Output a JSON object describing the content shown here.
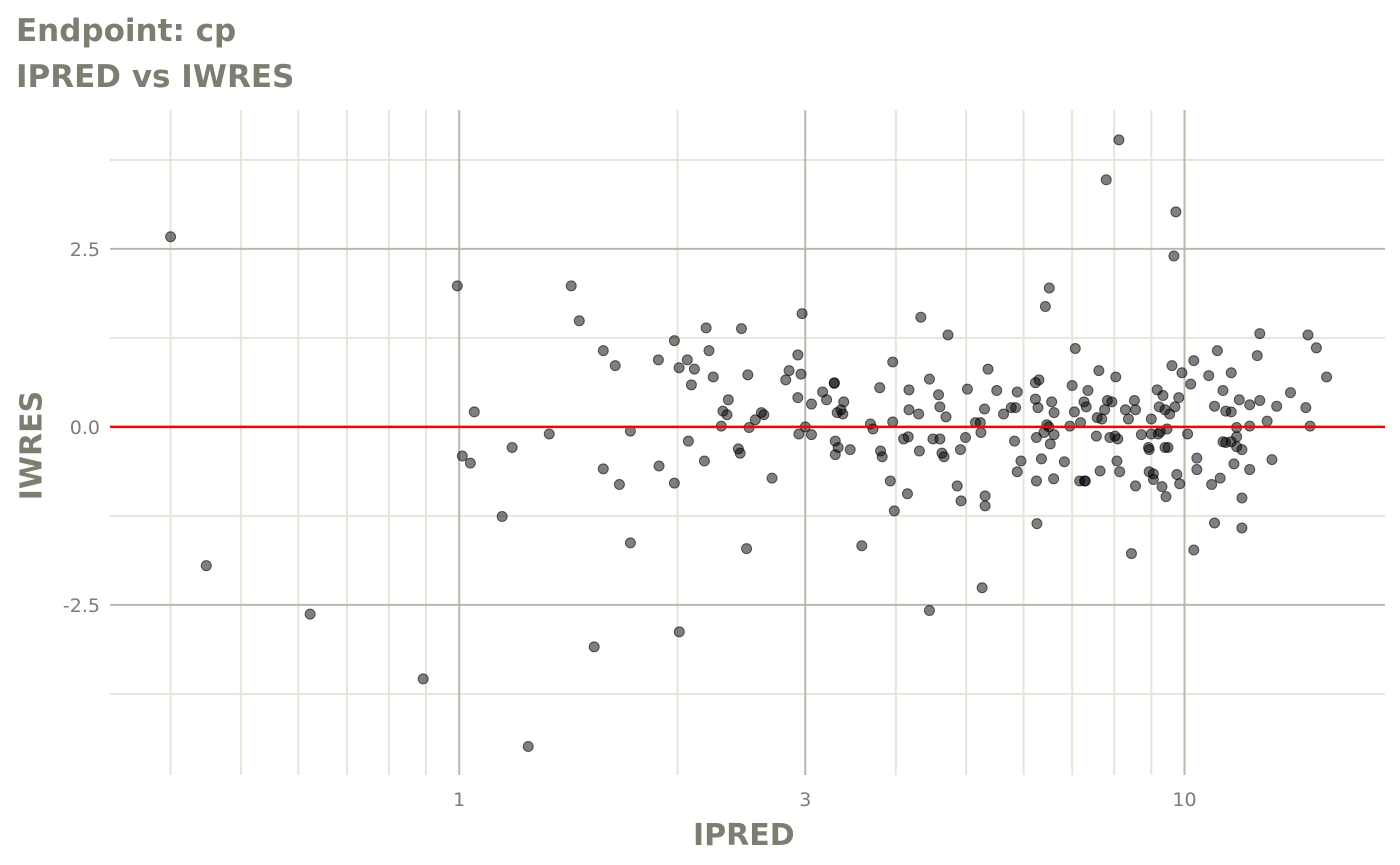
{
  "chart_data": {
    "type": "scatter",
    "title": "Endpoint:  cp",
    "subtitle": "IPRED vs IWRES",
    "xlabel": "IPRED",
    "ylabel": "IWRES",
    "x_scale": "log10",
    "xlim": [
      0.33,
      18.9
    ],
    "ylim": [
      -4.89,
      4.45
    ],
    "x_ticks": [
      {
        "value": 1,
        "label": "1"
      },
      {
        "value": 3,
        "label": "3"
      },
      {
        "value": 10,
        "label": "10"
      }
    ],
    "x_minor_grid": [
      0.4,
      0.5,
      0.6,
      0.7,
      0.8,
      0.9,
      2,
      4,
      5,
      6,
      7,
      8,
      9,
      20
    ],
    "y_ticks": [
      {
        "value": -2.5,
        "label": "-2.5"
      },
      {
        "value": 0,
        "label": "0.0"
      },
      {
        "value": 2.5,
        "label": "2.5"
      }
    ],
    "y_minor_grid": [
      -3.75,
      -1.25,
      1.25,
      3.75
    ],
    "grid": true,
    "reference_line": {
      "y": 0,
      "color": "#ff0000"
    },
    "point_color": "#000000",
    "point_alpha": 0.5,
    "colors": {
      "title": "#7d7d72",
      "major_grid": "#b9b9ab",
      "minor_grid": "#e5e5d8",
      "tick_label": "#7d7d72"
    },
    "points": [
      [
        0.4,
        2.67
      ],
      [
        0.448,
        -1.95
      ],
      [
        0.623,
        -2.63
      ],
      [
        0.892,
        -3.54
      ],
      [
        0.994,
        1.98
      ],
      [
        1.01,
        -0.41
      ],
      [
        1.036,
        -0.51
      ],
      [
        1.049,
        0.21
      ],
      [
        1.146,
        -1.26
      ],
      [
        1.183,
        -0.29
      ],
      [
        1.245,
        -4.49
      ],
      [
        1.331,
        -0.1
      ],
      [
        1.427,
        1.98
      ],
      [
        1.464,
        1.49
      ],
      [
        1.535,
        -3.09
      ],
      [
        1.58,
        1.07
      ],
      [
        1.58,
        -0.59
      ],
      [
        1.641,
        0.86
      ],
      [
        1.663,
        -0.81
      ],
      [
        1.722,
        -0.06
      ],
      [
        1.722,
        -1.63
      ],
      [
        1.882,
        0.94
      ],
      [
        1.886,
        -0.55
      ],
      [
        1.98,
        1.21
      ],
      [
        1.98,
        -0.79
      ],
      [
        2.011,
        -2.88
      ],
      [
        2.01,
        0.83
      ],
      [
        2.063,
        0.94
      ],
      [
        2.07,
        -0.2
      ],
      [
        2.09,
        0.59
      ],
      [
        2.11,
        0.81
      ],
      [
        2.178,
        -0.48
      ],
      [
        2.19,
        1.39
      ],
      [
        2.21,
        1.07
      ],
      [
        2.24,
        0.7
      ],
      [
        2.298,
        0.01
      ],
      [
        2.31,
        0.22
      ],
      [
        2.34,
        0.17
      ],
      [
        2.35,
        0.38
      ],
      [
        2.426,
        -0.31
      ],
      [
        2.44,
        -0.37
      ],
      [
        2.45,
        1.38
      ],
      [
        2.49,
        -1.71
      ],
      [
        2.5,
        0.73
      ],
      [
        2.51,
        -0.01
      ],
      [
        2.56,
        0.1
      ],
      [
        2.61,
        0.2
      ],
      [
        2.63,
        0.17
      ],
      [
        2.7,
        -0.72
      ],
      [
        2.82,
        0.66
      ],
      [
        2.85,
        0.79
      ],
      [
        2.93,
        0.41
      ],
      [
        2.93,
        1.01
      ],
      [
        2.94,
        -0.1
      ],
      [
        2.96,
        0.74
      ],
      [
        2.97,
        1.59
      ],
      [
        3.0,
        0.0
      ],
      [
        3.06,
        -0.11
      ],
      [
        3.06,
        0.32
      ],
      [
        3.17,
        0.49
      ],
      [
        3.21,
        0.38
      ],
      [
        3.29,
        0.62
      ],
      [
        3.29,
        0.61
      ],
      [
        3.3,
        -0.2
      ],
      [
        3.3,
        -0.39
      ],
      [
        3.32,
        0.2
      ],
      [
        3.33,
        -0.29
      ],
      [
        3.36,
        0.24
      ],
      [
        3.38,
        0.18
      ],
      [
        3.39,
        0.35
      ],
      [
        3.46,
        -0.32
      ],
      [
        3.59,
        -1.67
      ],
      [
        3.69,
        0.04
      ],
      [
        3.72,
        -0.03
      ],
      [
        3.8,
        0.55
      ],
      [
        3.81,
        -0.34
      ],
      [
        3.83,
        -0.42
      ],
      [
        3.93,
        -0.76
      ],
      [
        3.96,
        0.07
      ],
      [
        3.96,
        0.91
      ],
      [
        3.98,
        -1.18
      ],
      [
        4.1,
        -0.17
      ],
      [
        4.15,
        -0.94
      ],
      [
        4.16,
        -0.14
      ],
      [
        4.17,
        0.24
      ],
      [
        4.17,
        0.52
      ],
      [
        4.3,
        0.18
      ],
      [
        4.31,
        -0.34
      ],
      [
        4.33,
        1.54
      ],
      [
        4.45,
        0.67
      ],
      [
        4.45,
        -2.58
      ],
      [
        4.5,
        -0.17
      ],
      [
        4.58,
        0.45
      ],
      [
        4.6,
        0.28
      ],
      [
        4.6,
        -0.17
      ],
      [
        4.63,
        -0.37
      ],
      [
        4.66,
        -0.42
      ],
      [
        4.69,
        0.14
      ],
      [
        4.72,
        1.29
      ],
      [
        4.86,
        -0.83
      ],
      [
        4.91,
        -0.32
      ],
      [
        4.92,
        -1.04
      ],
      [
        4.99,
        -0.15
      ],
      [
        5.02,
        0.53
      ],
      [
        5.15,
        0.06
      ],
      [
        5.23,
        0.06
      ],
      [
        5.24,
        -0.08
      ],
      [
        5.26,
        -2.26
      ],
      [
        5.3,
        0.25
      ],
      [
        5.31,
        -0.97
      ],
      [
        5.31,
        -1.11
      ],
      [
        5.36,
        0.81
      ],
      [
        5.51,
        0.51
      ],
      [
        5.63,
        0.18
      ],
      [
        5.77,
        0.27
      ],
      [
        5.83,
        -0.2
      ],
      [
        5.85,
        0.27
      ],
      [
        5.88,
        0.49
      ],
      [
        5.88,
        -0.63
      ],
      [
        5.95,
        -0.48
      ],
      [
        6.23,
        0.39
      ],
      [
        6.23,
        0.62
      ],
      [
        6.25,
        -0.15
      ],
      [
        6.25,
        -0.76
      ],
      [
        6.26,
        -1.36
      ],
      [
        6.28,
        0.27
      ],
      [
        6.3,
        0.66
      ],
      [
        6.35,
        -0.45
      ],
      [
        6.4,
        -0.08
      ],
      [
        6.43,
        1.69
      ],
      [
        6.46,
        0.03
      ],
      [
        6.5,
        0.0
      ],
      [
        6.51,
        1.95
      ],
      [
        6.53,
        -0.24
      ],
      [
        6.56,
        0.35
      ],
      [
        6.6,
        -0.73
      ],
      [
        6.61,
        -0.11
      ],
      [
        6.61,
        0.2
      ],
      [
        6.83,
        -0.49
      ],
      [
        6.95,
        0.01
      ],
      [
        7.0,
        0.58
      ],
      [
        7.05,
        0.21
      ],
      [
        7.07,
        1.1
      ],
      [
        7.17,
        -0.76
      ],
      [
        7.19,
        0.06
      ],
      [
        7.27,
        0.35
      ],
      [
        7.28,
        -0.76
      ],
      [
        7.3,
        -0.76
      ],
      [
        7.32,
        0.28
      ],
      [
        7.36,
        0.51
      ],
      [
        7.56,
        -0.13
      ],
      [
        7.58,
        0.13
      ],
      [
        7.62,
        0.79
      ],
      [
        7.65,
        -0.62
      ],
      [
        7.69,
        0.11
      ],
      [
        7.76,
        0.24
      ],
      [
        7.8,
        3.47
      ],
      [
        7.83,
        0.37
      ],
      [
        7.89,
        -0.15
      ],
      [
        7.94,
        0.35
      ],
      [
        8.02,
        -0.13
      ],
      [
        8.04,
        0.7
      ],
      [
        8.07,
        -0.48
      ],
      [
        8.09,
        -0.17
      ],
      [
        8.12,
        4.03
      ],
      [
        8.14,
        -0.63
      ],
      [
        8.29,
        0.24
      ],
      [
        8.37,
        0.11
      ],
      [
        8.45,
        -1.78
      ],
      [
        8.53,
        0.37
      ],
      [
        8.56,
        -0.83
      ],
      [
        8.56,
        0.24
      ],
      [
        8.72,
        -0.11
      ],
      [
        8.92,
        -0.29
      ],
      [
        8.94,
        -0.63
      ],
      [
        8.94,
        -0.32
      ],
      [
        9.0,
        -0.1
      ],
      [
        9.0,
        0.11
      ],
      [
        9.06,
        -0.74
      ],
      [
        9.06,
        -0.66
      ],
      [
        9.17,
        0.52
      ],
      [
        9.2,
        -0.1
      ],
      [
        9.23,
        0.28
      ],
      [
        9.26,
        -0.07
      ],
      [
        9.31,
        -0.84
      ],
      [
        9.34,
        0.44
      ],
      [
        9.4,
        -0.29
      ],
      [
        9.4,
        0.24
      ],
      [
        9.43,
        -0.98
      ],
      [
        9.46,
        -0.03
      ],
      [
        9.49,
        -0.29
      ],
      [
        9.54,
        0.18
      ],
      [
        9.61,
        0.86
      ],
      [
        9.67,
        2.4
      ],
      [
        9.7,
        0.28
      ],
      [
        9.73,
        3.02
      ],
      [
        9.76,
        -0.67
      ],
      [
        9.82,
        0.41
      ],
      [
        9.85,
        -0.8
      ],
      [
        9.92,
        0.76
      ],
      [
        10.1,
        -0.1
      ],
      [
        10.2,
        0.6
      ],
      [
        10.3,
        -1.73
      ],
      [
        10.3,
        0.93
      ],
      [
        10.4,
        -0.44
      ],
      [
        10.4,
        -0.6
      ],
      [
        10.8,
        0.72
      ],
      [
        10.9,
        -0.81
      ],
      [
        11.0,
        0.29
      ],
      [
        11.0,
        -1.35
      ],
      [
        11.1,
        1.07
      ],
      [
        11.2,
        -0.72
      ],
      [
        11.3,
        -0.21
      ],
      [
        11.3,
        0.51
      ],
      [
        11.4,
        0.22
      ],
      [
        11.4,
        -0.22
      ],
      [
        11.6,
        0.21
      ],
      [
        11.6,
        0.76
      ],
      [
        11.6,
        -0.21
      ],
      [
        11.7,
        -0.52
      ],
      [
        11.8,
        -0.28
      ],
      [
        11.8,
        -0.01
      ],
      [
        11.8,
        -0.14
      ],
      [
        11.9,
        0.38
      ],
      [
        12.0,
        -0.32
      ],
      [
        12.0,
        -1.0
      ],
      [
        12.0,
        -1.42
      ],
      [
        12.3,
        0.31
      ],
      [
        12.3,
        0.01
      ],
      [
        12.3,
        -0.6
      ],
      [
        12.6,
        1.0
      ],
      [
        12.7,
        1.31
      ],
      [
        12.7,
        0.37
      ],
      [
        13.0,
        0.08
      ],
      [
        13.2,
        -0.46
      ],
      [
        13.4,
        0.29
      ],
      [
        14.0,
        0.48
      ],
      [
        14.7,
        0.27
      ],
      [
        14.8,
        1.29
      ],
      [
        14.9,
        0.01
      ],
      [
        15.2,
        1.11
      ],
      [
        15.7,
        0.7
      ]
    ]
  }
}
